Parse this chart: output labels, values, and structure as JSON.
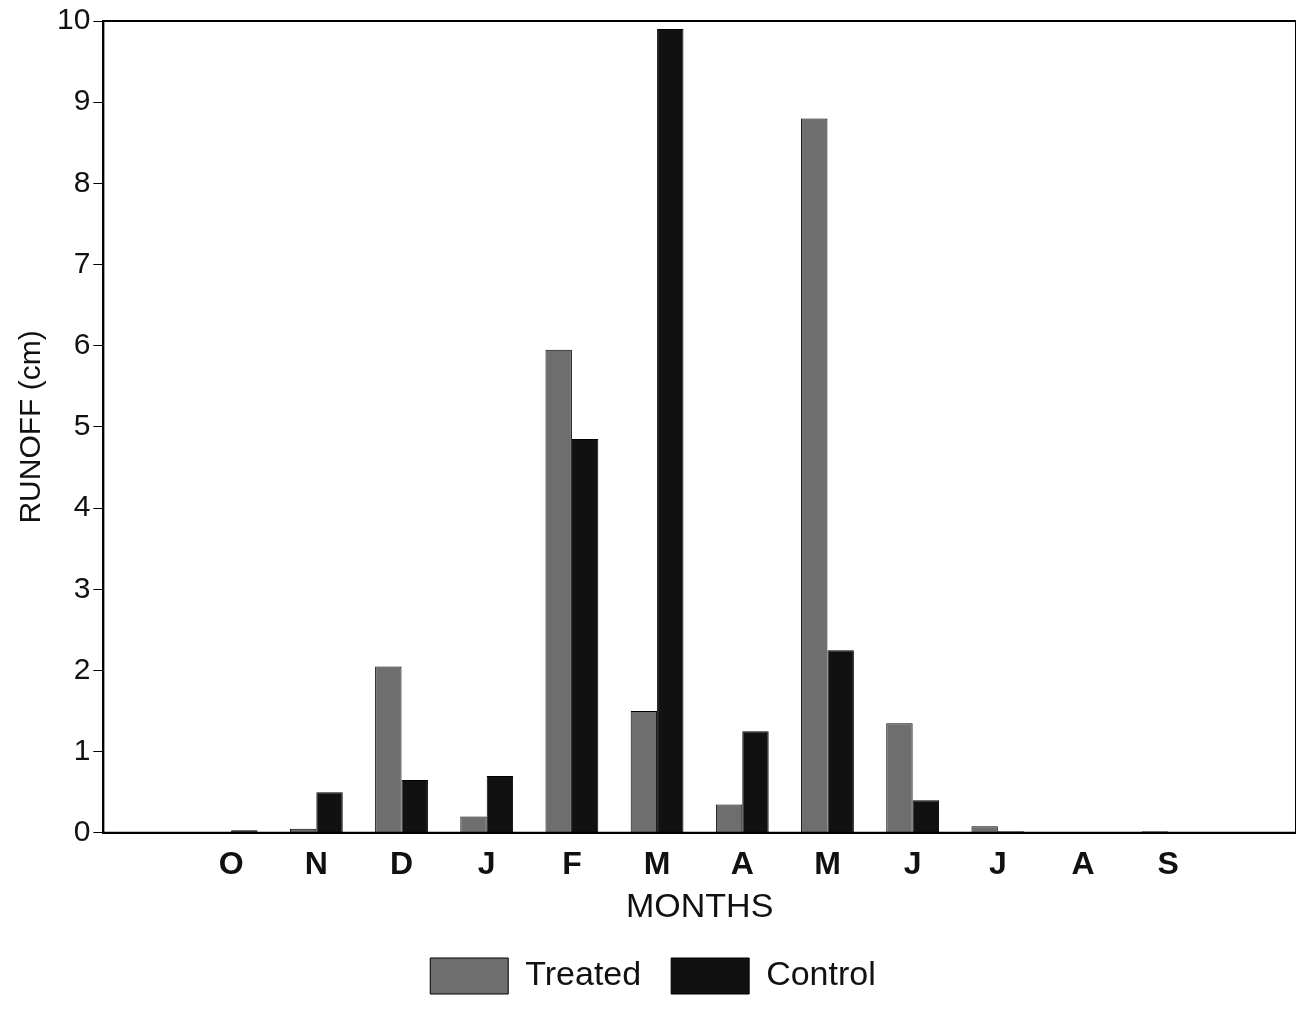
{
  "chart_data": {
    "type": "bar",
    "xlabel": "MONTHS",
    "ylabel": "RUNOFF (cm)",
    "categories": [
      null,
      "O",
      "N",
      "D",
      "J",
      "F",
      "M",
      "A",
      "M",
      "J",
      "J",
      "A",
      "S",
      null
    ],
    "series": [
      {
        "name": "Treated",
        "color": "#6e6e6e",
        "values": [
          null,
          null,
          0.05,
          2.05,
          0.2,
          5.95,
          1.5,
          0.35,
          8.8,
          1.35,
          0.08,
          null,
          0.02,
          null
        ]
      },
      {
        "name": "Control",
        "color": "#111111",
        "values": [
          null,
          0.03,
          0.5,
          0.65,
          0.7,
          4.85,
          9.9,
          1.25,
          2.25,
          0.4,
          0.02,
          0.01,
          0.01,
          null
        ]
      }
    ],
    "ylim": [
      0,
      10
    ],
    "yticks": [
      0,
      1,
      2,
      3,
      4,
      5,
      6,
      7,
      8,
      9,
      10
    ],
    "grid": false,
    "legend": "bottom"
  }
}
